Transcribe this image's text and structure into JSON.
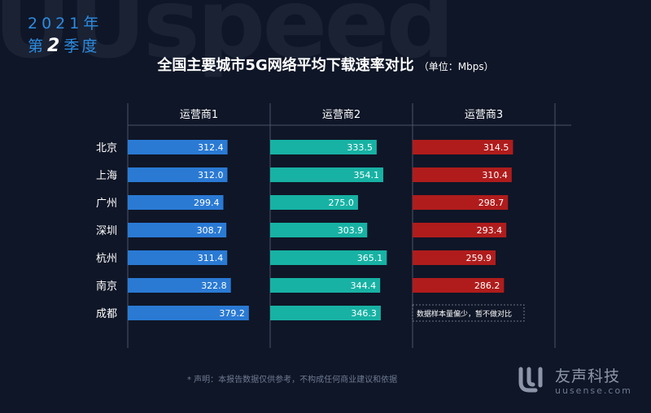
{
  "watermark": "UUspeed",
  "period": {
    "year": "2021年",
    "quarter_prefix": "第",
    "quarter_number": "2",
    "quarter_suffix": "季度"
  },
  "footer": "* 声明：本报告数据仅供参考，不构成任何商业建议和依据",
  "logo": {
    "brand": "友声科技",
    "url": "uusense.com"
  },
  "colors": {
    "operator1": "#2a7ad4",
    "operator2": "#17b2a4",
    "operator3": "#b01c1c",
    "grid": "#4a5468"
  },
  "chart_data": {
    "type": "bar",
    "title": "全国主要城市5G网络平均下载速率对比",
    "unit": "（单位：Mbps）",
    "categories": [
      "北京",
      "上海",
      "广州",
      "深圳",
      "杭州",
      "南京",
      "成都"
    ],
    "series": [
      {
        "name": "运营商1",
        "values": [
          312.4,
          312.0,
          299.4,
          308.7,
          311.4,
          322.8,
          379.2
        ]
      },
      {
        "name": "运营商2",
        "values": [
          333.5,
          354.1,
          275.0,
          303.9,
          365.1,
          344.4,
          346.3
        ]
      },
      {
        "name": "运营商3",
        "values": [
          314.5,
          310.4,
          298.7,
          293.4,
          259.9,
          286.2,
          null
        ]
      }
    ],
    "annotations": [
      {
        "series": "运营商3",
        "category": "成都",
        "text": "数据样本量偏少，暂不做对比"
      }
    ],
    "xlim": [
      0,
      400
    ]
  }
}
